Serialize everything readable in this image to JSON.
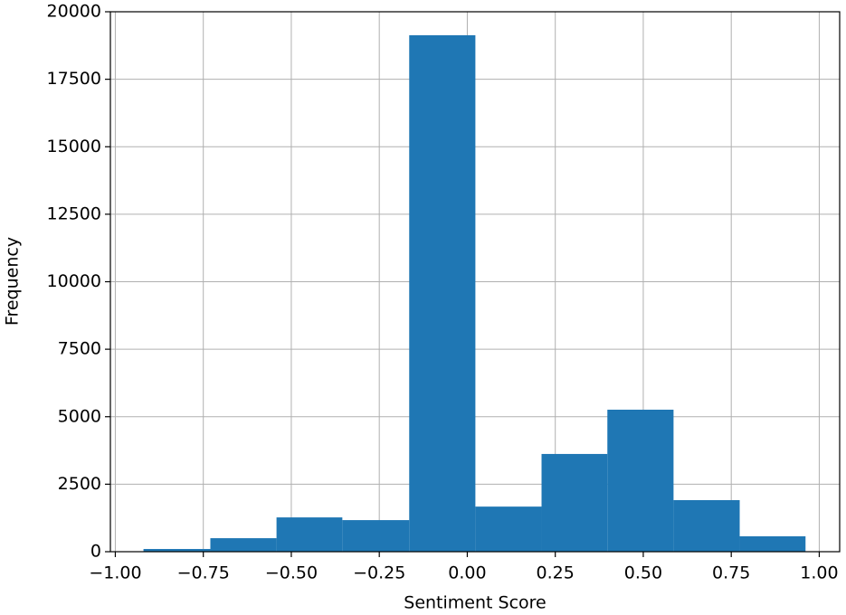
{
  "chart_data": {
    "type": "histogram",
    "xlabel": "Sentiment Score",
    "ylabel": "Frequency",
    "bins": [
      -0.92,
      -0.73,
      -0.542,
      -0.355,
      -0.165,
      0.023,
      0.211,
      0.398,
      0.586,
      0.774,
      0.961
    ],
    "values": [
      100,
      500,
      1270,
      1170,
      19130,
      1670,
      3620,
      5260,
      1910,
      570
    ],
    "color": "#1f77b4",
    "xlim": [
      -1.014,
      1.058
    ],
    "xticks": [
      {
        "value": -1,
        "label": "−1.00"
      },
      {
        "value": -0.75,
        "label": "−0.75"
      },
      {
        "value": -0.5,
        "label": "−0.50"
      },
      {
        "value": -0.25,
        "label": "−0.25"
      },
      {
        "value": 0,
        "label": "0.00"
      },
      {
        "value": 0.25,
        "label": "0.25"
      },
      {
        "value": 0.5,
        "label": "0.50"
      },
      {
        "value": 0.75,
        "label": "0.75"
      },
      {
        "value": 1,
        "label": "1.00"
      }
    ],
    "ylim": [
      0,
      20000
    ],
    "yticks": [
      0,
      2500,
      5000,
      7500,
      10000,
      12500,
      15000,
      17500,
      20000
    ],
    "grid": true
  }
}
